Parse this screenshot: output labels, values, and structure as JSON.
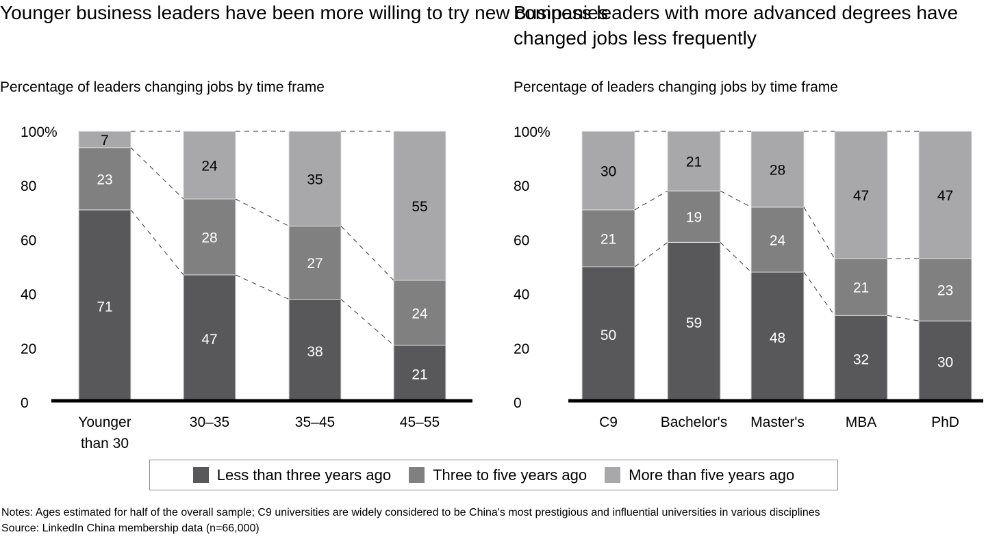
{
  "chart_data": [
    {
      "type": "bar",
      "stacked": true,
      "title": "Younger business leaders have been more willing to try new companies",
      "subtitle": "Percentage of leaders changing jobs by time frame",
      "categories": [
        "Younger than 30",
        "30–35",
        "35–45",
        "45–55"
      ],
      "series": [
        {
          "name": "Less than three years ago",
          "values": [
            71,
            47,
            38,
            21
          ]
        },
        {
          "name": "Three to five years ago",
          "values": [
            23,
            28,
            27,
            24
          ]
        },
        {
          "name": "More than five years ago",
          "values": [
            7,
            24,
            35,
            55
          ]
        }
      ],
      "ylim": [
        0,
        100
      ],
      "yticks": [
        "0",
        "20",
        "40",
        "60",
        "80",
        "100%"
      ]
    },
    {
      "type": "bar",
      "stacked": true,
      "title": "Business leaders with more advanced degrees have changed jobs less frequently",
      "subtitle": "Percentage of leaders changing jobs by time frame",
      "categories": [
        "C9",
        "Bachelor's",
        "Master's",
        "MBA",
        "PhD"
      ],
      "series": [
        {
          "name": "Less than three years ago",
          "values": [
            50,
            59,
            48,
            32,
            30
          ]
        },
        {
          "name": "Three to five years ago",
          "values": [
            21,
            19,
            24,
            21,
            23
          ]
        },
        {
          "name": "More than five years ago",
          "values": [
            30,
            21,
            28,
            47,
            47
          ]
        }
      ],
      "ylim": [
        0,
        100
      ],
      "yticks": [
        "0",
        "20",
        "40",
        "60",
        "80",
        "100%"
      ]
    }
  ],
  "legend": [
    "Less than three years ago",
    "Three to five years ago",
    "More than five years ago"
  ],
  "colors": [
    "#58585a",
    "#808081",
    "#a8a8aa"
  ],
  "notes": "Notes: Ages estimated for half of the overall sample; C9 universities are widely considered to be China's most prestigious and influential universities in various disciplines",
  "source": "Source: LinkedIn China membership data (n=66,000)"
}
